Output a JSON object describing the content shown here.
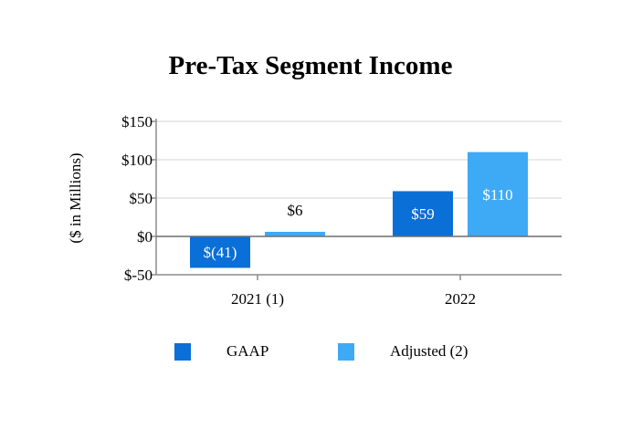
{
  "chart_data": {
    "type": "bar",
    "title": "Pre-Tax Segment Income",
    "ylabel": "($ in Millions)",
    "xlabel": "",
    "categories": [
      "2021 (1)",
      "2022"
    ],
    "series": [
      {
        "name": "GAAP",
        "values": [
          -41,
          59
        ],
        "labels": [
          "$(41)",
          "$59"
        ],
        "color": "#0a6fd6"
      },
      {
        "name": "Adjusted (2)",
        "values": [
          6,
          110
        ],
        "labels": [
          "$6",
          "$110"
        ],
        "color": "#3eaaf5"
      }
    ],
    "ylim": [
      -50,
      150
    ],
    "yticks": [
      150,
      100,
      50,
      0,
      -50
    ],
    "ytick_labels": [
      "$150",
      "$100",
      "$50",
      "$0",
      "$-50"
    ],
    "grid": true,
    "legend_position": "bottom"
  }
}
